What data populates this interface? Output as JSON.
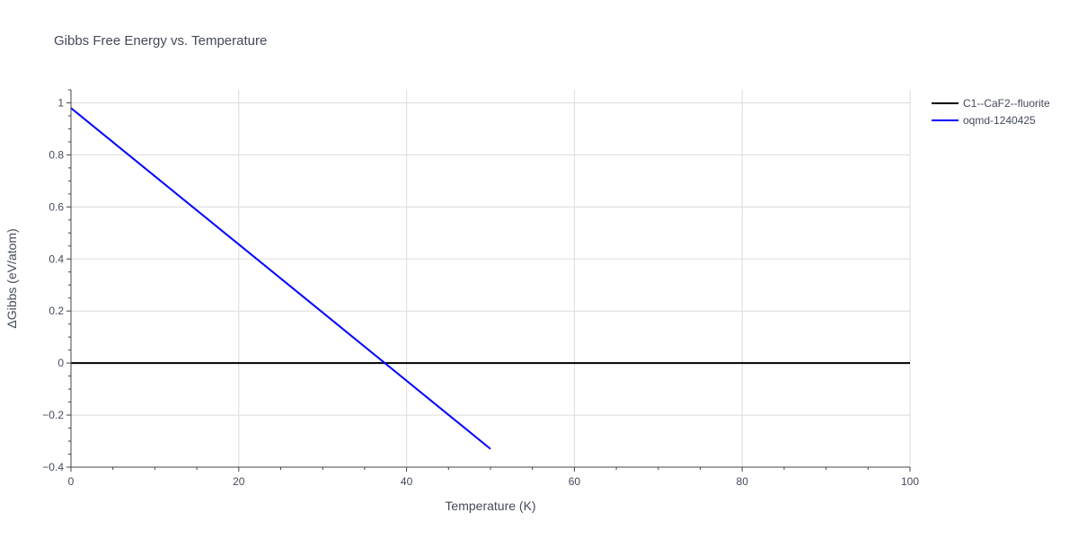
{
  "chart_data": {
    "type": "line",
    "title": "Gibbs Free Energy vs. Temperature",
    "xlabel": "Temperature (K)",
    "ylabel": "ΔGibbs (eV/atom)",
    "xlim": [
      0,
      100
    ],
    "ylim": [
      -0.4,
      1.05
    ],
    "x_ticks": [
      0,
      20,
      40,
      60,
      80,
      100
    ],
    "y_ticks": [
      -0.4,
      -0.2,
      0,
      0.2,
      0.4,
      0.6,
      0.8,
      1
    ],
    "x_tick_labels": [
      "0",
      "20",
      "40",
      "60",
      "80",
      "100"
    ],
    "y_tick_labels": [
      "−0.4",
      "−0.2",
      "0",
      "0.2",
      "0.4",
      "0.6",
      "0.8",
      "1"
    ],
    "grid": true,
    "legend_position": "top-right",
    "series": [
      {
        "name": "C1--CaF2--fluorite",
        "color": "#000000",
        "x": [
          0,
          100
        ],
        "y": [
          0,
          0
        ]
      },
      {
        "name": "oqmd-1240425",
        "color": "#0000ff",
        "x": [
          0,
          50
        ],
        "y": [
          0.98,
          -0.33
        ]
      }
    ]
  }
}
